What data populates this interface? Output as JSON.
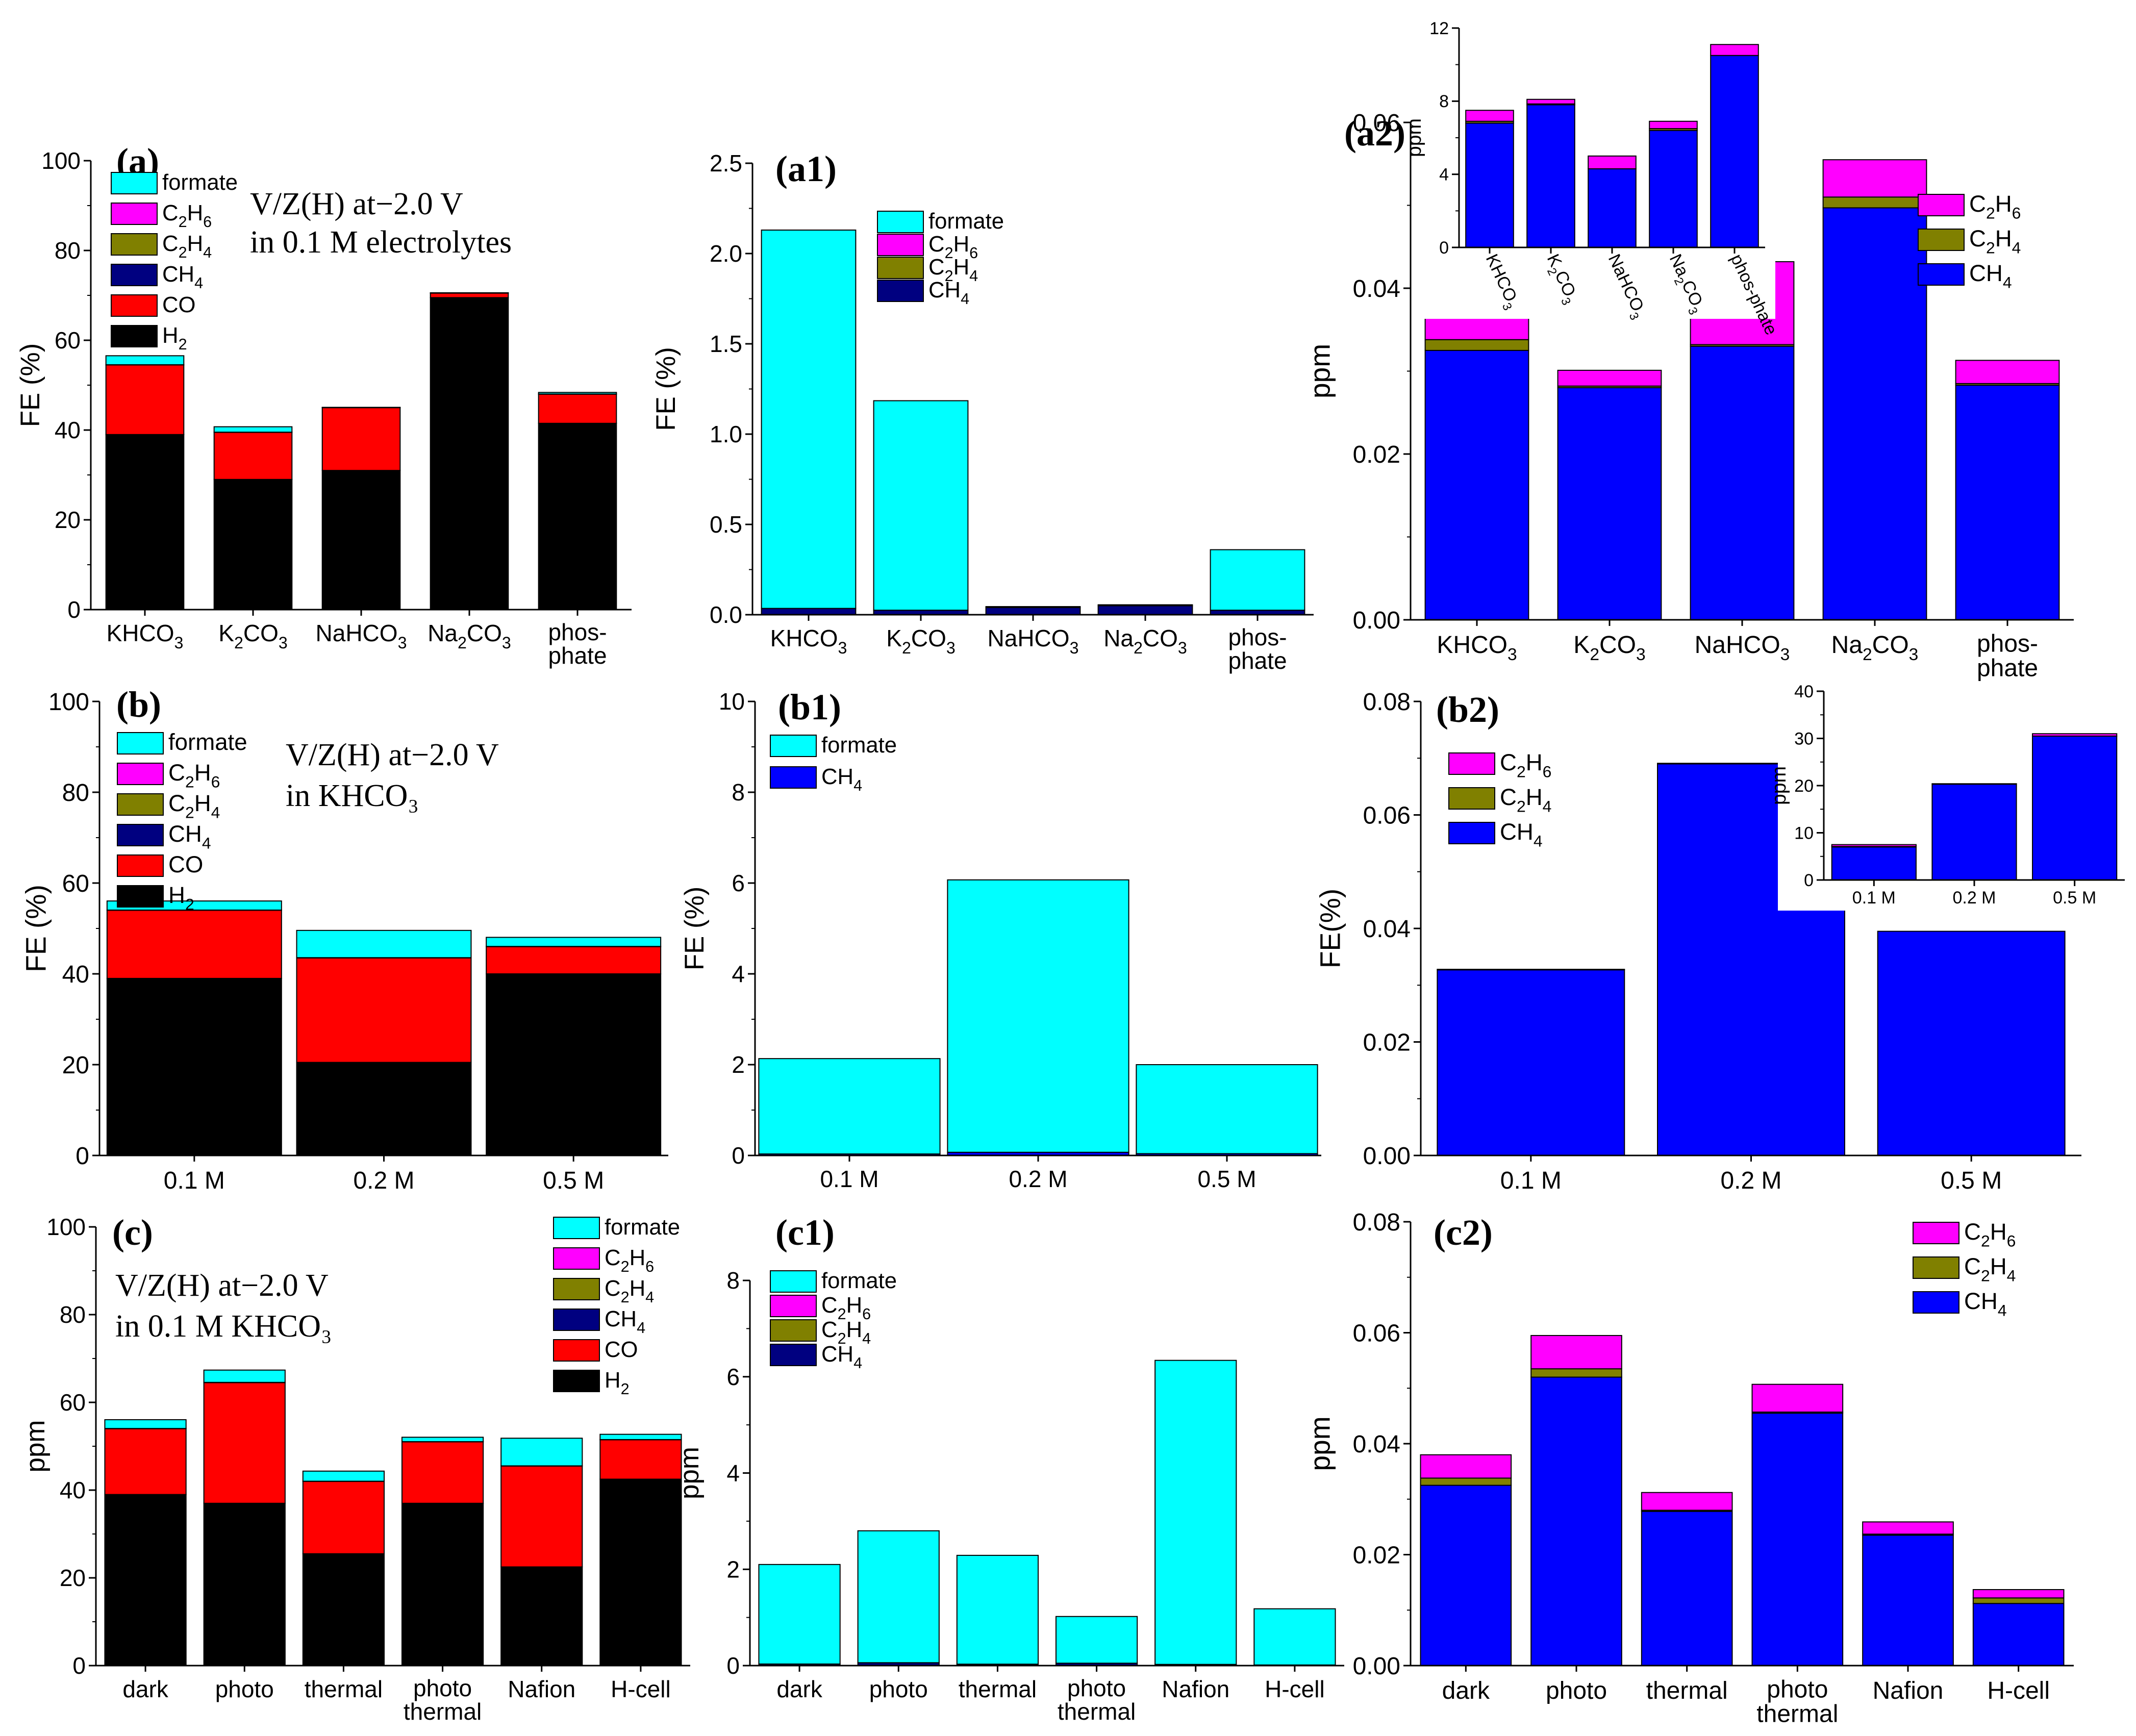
{
  "colors": {
    "formate": "#00FFFF",
    "C2H6": "#FF00FF",
    "C2H4": "#808000",
    "CH4_dark": "#000080",
    "CH4": "#0000FF",
    "CO": "#FF0000",
    "H2": "#000000"
  },
  "chart_data": [
    {
      "id": "a",
      "type": "bar",
      "stacked": true,
      "panel_label": "(a)",
      "annotation": [
        "V/Z(H) at−2.0 V",
        "in 0.1 M electrolytes"
      ],
      "ylabel": "FE (%)",
      "ylim": [
        0,
        100
      ],
      "yticks": [
        "0",
        "20",
        "40",
        "60",
        "80",
        "100"
      ],
      "categories": [
        [
          "KHCO",
          "3",
          ""
        ],
        [
          "K",
          "2",
          "CO",
          "3",
          ""
        ],
        [
          "NaHCO",
          "3",
          ""
        ],
        [
          "Na",
          "2",
          "CO",
          "3",
          ""
        ],
        [
          "phos-",
          "phate"
        ]
      ],
      "series": [
        {
          "name": "H2",
          "label": [
            "H",
            "2",
            ""
          ],
          "color": "#000000",
          "values": [
            39,
            29,
            31,
            69.5,
            41.5
          ]
        },
        {
          "name": "CO",
          "label": [
            "CO"
          ],
          "color": "#FF0000",
          "values": [
            15.5,
            10.5,
            14,
            1,
            6.5
          ]
        },
        {
          "name": "CH4",
          "label": [
            "CH",
            "4",
            ""
          ],
          "color": "#000080",
          "values": [
            0.05,
            0.03,
            0.03,
            0.05,
            0.03
          ]
        },
        {
          "name": "C2H4",
          "label": [
            "C",
            "2",
            "H",
            "4",
            ""
          ],
          "color": "#808000",
          "values": [
            0,
            0,
            0,
            0,
            0
          ]
        },
        {
          "name": "C2H6",
          "label": [
            "C",
            "2",
            "H",
            "6",
            ""
          ],
          "color": "#FF00FF",
          "values": [
            0,
            0,
            0,
            0,
            0
          ]
        },
        {
          "name": "formate",
          "label": [
            "formate"
          ],
          "color": "#00FFFF",
          "values": [
            2,
            1.2,
            0.03,
            0.03,
            0.35
          ]
        }
      ]
    },
    {
      "id": "a1",
      "type": "bar",
      "stacked": true,
      "panel_label": "(a1)",
      "ylabel": "FE (%)",
      "ylim": [
        0,
        2.5
      ],
      "yticks": [
        "0.0",
        "0.5",
        "1.0",
        "1.5",
        "2.0",
        "2.5"
      ],
      "categories": [
        [
          "KHCO",
          "3",
          ""
        ],
        [
          "K",
          "2",
          "CO",
          "3",
          ""
        ],
        [
          "NaHCO",
          "3",
          ""
        ],
        [
          "Na",
          "2",
          "CO",
          "3",
          ""
        ],
        [
          "phos-",
          "phate"
        ]
      ],
      "series": [
        {
          "name": "CH4",
          "label": [
            "CH",
            "4",
            ""
          ],
          "color": "#000080",
          "values": [
            0.035,
            0.025,
            0.04,
            0.05,
            0.025
          ]
        },
        {
          "name": "C2H4",
          "label": [
            "C",
            "2",
            "H",
            "4",
            ""
          ],
          "color": "#808000",
          "values": [
            0,
            0,
            0,
            0,
            0
          ]
        },
        {
          "name": "C2H6",
          "label": [
            "C",
            "2",
            "H",
            "6",
            ""
          ],
          "color": "#FF00FF",
          "values": [
            0,
            0,
            0,
            0,
            0
          ]
        },
        {
          "name": "formate",
          "label": [
            "formate"
          ],
          "color": "#00FFFF",
          "values": [
            2.095,
            1.16,
            0.005,
            0.005,
            0.335
          ]
        }
      ]
    },
    {
      "id": "a2",
      "type": "bar",
      "stacked": true,
      "panel_label": "(a2)",
      "ylabel": "ppm",
      "ylim": [
        0,
        0.06
      ],
      "yticks": [
        "0.00",
        "0.02",
        "0.04",
        "0.06"
      ],
      "categories": [
        [
          "KHCO",
          "3",
          ""
        ],
        [
          "K",
          "2",
          "CO",
          "3",
          ""
        ],
        [
          "NaHCO",
          "3",
          ""
        ],
        [
          "Na",
          "2",
          "CO",
          "3",
          ""
        ],
        [
          "phos-",
          "phate"
        ]
      ],
      "series": [
        {
          "name": "CH4",
          "label": [
            "CH",
            "4",
            ""
          ],
          "color": "#0000FF",
          "values": [
            0.0325,
            0.028,
            0.033,
            0.0497,
            0.0283
          ]
        },
        {
          "name": "C2H4",
          "label": [
            "C",
            "2",
            "H",
            "4",
            ""
          ],
          "color": "#808000",
          "values": [
            0.0013,
            0.0002,
            0.0002,
            0.0013,
            0.0002
          ]
        },
        {
          "name": "C2H6",
          "label": [
            "C",
            "2",
            "H",
            "6",
            ""
          ],
          "color": "#FF00FF",
          "values": [
            0.0042,
            0.0019,
            0.01,
            0.0045,
            0.0028
          ]
        }
      ]
    },
    {
      "id": "a2_inset",
      "type": "bar",
      "stacked": true,
      "ylabel": "ppm",
      "ylim": [
        0,
        12
      ],
      "yticks": [
        "0",
        "4",
        "8",
        "12"
      ],
      "categories": [
        [
          "KHCO",
          "3",
          ""
        ],
        [
          "K",
          "2",
          "CO",
          "3",
          ""
        ],
        [
          "NaHCO",
          "3",
          ""
        ],
        [
          "Na",
          "2",
          "CO",
          "3",
          ""
        ],
        [
          "phos-",
          "phate"
        ]
      ],
      "series": [
        {
          "name": "CH4",
          "label": [
            "CH",
            "4",
            ""
          ],
          "color": "#0000FF",
          "values": [
            6.8,
            7.8,
            4.3,
            6.4,
            10.5
          ]
        },
        {
          "name": "C2H4",
          "label": [
            "C",
            "2",
            "H",
            "4",
            ""
          ],
          "color": "#808000",
          "values": [
            0.1,
            0.05,
            0,
            0.1,
            0
          ]
        },
        {
          "name": "C2H6",
          "label": [
            "C",
            "2",
            "H",
            "6",
            ""
          ],
          "color": "#FF00FF",
          "values": [
            0.6,
            0.25,
            0.7,
            0.4,
            0.6
          ]
        }
      ]
    },
    {
      "id": "b",
      "type": "bar",
      "stacked": true,
      "panel_label": "(b)",
      "annotation": [
        "V/Z(H) at−2.0 V",
        "in KHCO₃"
      ],
      "ylabel": "FE (%)",
      "ylim": [
        0,
        100
      ],
      "yticks": [
        "0",
        "20",
        "40",
        "60",
        "80",
        "100"
      ],
      "categories": [
        [
          "0.1 M"
        ],
        [
          "0.2 M"
        ],
        [
          "0.5 M"
        ]
      ],
      "series": [
        {
          "name": "H2",
          "label": [
            "H",
            "2",
            ""
          ],
          "color": "#000000",
          "values": [
            39,
            20.5,
            40
          ]
        },
        {
          "name": "CO",
          "label": [
            "CO"
          ],
          "color": "#FF0000",
          "values": [
            15,
            23,
            6
          ]
        },
        {
          "name": "CH4",
          "label": [
            "CH",
            "4",
            ""
          ],
          "color": "#000080",
          "values": [
            0.05,
            0.07,
            0.04
          ]
        },
        {
          "name": "C2H4",
          "label": [
            "C",
            "2",
            "H",
            "4",
            ""
          ],
          "color": "#808000",
          "values": [
            0,
            0,
            0
          ]
        },
        {
          "name": "C2H6",
          "label": [
            "C",
            "2",
            "H",
            "6",
            ""
          ],
          "color": "#FF00FF",
          "values": [
            0,
            0,
            0
          ]
        },
        {
          "name": "formate",
          "label": [
            "formate"
          ],
          "color": "#00FFFF",
          "values": [
            2,
            6,
            2
          ]
        }
      ]
    },
    {
      "id": "b1",
      "type": "bar",
      "stacked": true,
      "panel_label": "(b1)",
      "ylabel": "FE (%)",
      "ylim": [
        0,
        10
      ],
      "yticks": [
        "0",
        "2",
        "4",
        "6",
        "8",
        "10"
      ],
      "categories": [
        [
          "0.1 M"
        ],
        [
          "0.2 M"
        ],
        [
          "0.5 M"
        ]
      ],
      "series": [
        {
          "name": "CH4",
          "label": [
            "CH",
            "4",
            ""
          ],
          "color": "#0000FF",
          "values": [
            0.033,
            0.07,
            0.04
          ]
        },
        {
          "name": "formate",
          "label": [
            "formate"
          ],
          "color": "#00FFFF",
          "values": [
            2.1,
            6.0,
            1.96
          ]
        }
      ]
    },
    {
      "id": "b2",
      "type": "bar",
      "stacked": true,
      "panel_label": "(b2)",
      "ylabel": "FE(%)",
      "ylim": [
        0,
        0.08
      ],
      "yticks": [
        "0.00",
        "0.02",
        "0.04",
        "0.06",
        "0.08"
      ],
      "categories": [
        [
          "0.1 M"
        ],
        [
          "0.2 M"
        ],
        [
          "0.5 M"
        ]
      ],
      "series": [
        {
          "name": "CH4",
          "label": [
            "CH",
            "4",
            ""
          ],
          "color": "#0000FF",
          "values": [
            0.0327,
            0.069,
            0.0395
          ]
        },
        {
          "name": "C2H4",
          "label": [
            "C",
            "2",
            "H",
            "4",
            ""
          ],
          "color": "#808000",
          "values": [
            0.0001,
            0.0001,
            0
          ]
        },
        {
          "name": "C2H6",
          "label": [
            "C",
            "2",
            "H",
            "6",
            ""
          ],
          "color": "#FF00FF",
          "values": [
            0,
            0,
            0
          ]
        }
      ]
    },
    {
      "id": "b2_inset",
      "type": "bar",
      "stacked": true,
      "ylabel": "ppm",
      "ylim": [
        0,
        40
      ],
      "yticks": [
        "0",
        "10",
        "20",
        "30",
        "40"
      ],
      "categories": [
        [
          "0.1 M"
        ],
        [
          "0.2 M"
        ],
        [
          "0.5 M"
        ]
      ],
      "series": [
        {
          "name": "CH4",
          "label": [
            "CH",
            "4",
            ""
          ],
          "color": "#0000FF",
          "values": [
            7,
            20.3,
            30.5
          ]
        },
        {
          "name": "C2H4",
          "label": [
            "C",
            "2",
            "H",
            "4",
            ""
          ],
          "color": "#808000",
          "values": [
            0.1,
            0,
            0
          ]
        },
        {
          "name": "C2H6",
          "label": [
            "C",
            "2",
            "H",
            "6",
            ""
          ],
          "color": "#FF00FF",
          "values": [
            0.4,
            0.1,
            0.5
          ]
        }
      ]
    },
    {
      "id": "c",
      "type": "bar",
      "stacked": true,
      "panel_label": "(c)",
      "annotation": [
        "V/Z(H) at−2.0 V",
        "in 0.1 M KHCO₃"
      ],
      "ylabel": "ppm",
      "ylim": [
        0,
        100
      ],
      "yticks": [
        "0",
        "20",
        "40",
        "60",
        "80",
        "100"
      ],
      "categories": [
        [
          "dark"
        ],
        [
          "photo"
        ],
        [
          "thermal"
        ],
        [
          "photo",
          "thermal"
        ],
        [
          "Nafion"
        ],
        [
          "H-cell"
        ]
      ],
      "series": [
        {
          "name": "H2",
          "label": [
            "H",
            "2",
            ""
          ],
          "color": "#000000",
          "values": [
            39,
            37,
            25.5,
            37,
            22.5,
            42.5
          ]
        },
        {
          "name": "CO",
          "label": [
            "CO"
          ],
          "color": "#FF0000",
          "values": [
            15,
            27.5,
            16.5,
            14,
            23,
            9
          ]
        },
        {
          "name": "CH4",
          "label": [
            "CH",
            "4",
            ""
          ],
          "color": "#000080",
          "values": [
            0.05,
            0.06,
            0.03,
            0.05,
            0.03,
            0.02
          ]
        },
        {
          "name": "C2H4",
          "label": [
            "C",
            "2",
            "H",
            "4",
            ""
          ],
          "color": "#808000",
          "values": [
            0,
            0,
            0,
            0,
            0,
            0
          ]
        },
        {
          "name": "C2H6",
          "label": [
            "C",
            "2",
            "H",
            "6",
            ""
          ],
          "color": "#FF00FF",
          "values": [
            0,
            0,
            0,
            0,
            0,
            0
          ]
        },
        {
          "name": "formate",
          "label": [
            "formate"
          ],
          "color": "#00FFFF",
          "values": [
            2,
            2.8,
            2.3,
            1,
            6.3,
            1.2
          ]
        }
      ]
    },
    {
      "id": "c1",
      "type": "bar",
      "stacked": true,
      "panel_label": "(c1)",
      "ylabel": "ppm",
      "ylim": [
        0,
        8
      ],
      "yticks": [
        "0",
        "2",
        "4",
        "6",
        "8"
      ],
      "categories": [
        [
          "dark"
        ],
        [
          "photo"
        ],
        [
          "thermal"
        ],
        [
          "photo",
          "thermal"
        ],
        [
          "Nafion"
        ],
        [
          "H-cell"
        ]
      ],
      "series": [
        {
          "name": "CH4",
          "label": [
            "CH",
            "4",
            ""
          ],
          "color": "#000080",
          "values": [
            0.033,
            0.06,
            0.03,
            0.05,
            0.025,
            0.013
          ]
        },
        {
          "name": "C2H4",
          "label": [
            "C",
            "2",
            "H",
            "4",
            ""
          ],
          "color": "#808000",
          "values": [
            0,
            0,
            0,
            0,
            0,
            0
          ]
        },
        {
          "name": "C2H6",
          "label": [
            "C",
            "2",
            "H",
            "6",
            ""
          ],
          "color": "#FF00FF",
          "values": [
            0,
            0,
            0,
            0,
            0,
            0
          ]
        },
        {
          "name": "formate",
          "label": [
            "formate"
          ],
          "color": "#00FFFF",
          "values": [
            2.067,
            2.74,
            2.26,
            0.97,
            6.315,
            1.167
          ]
        }
      ]
    },
    {
      "id": "c2",
      "type": "bar",
      "stacked": true,
      "panel_label": "(c2)",
      "ylabel": "ppm",
      "ylim": [
        0,
        0.08
      ],
      "yticks": [
        "0.00",
        "0.02",
        "0.04",
        "0.06",
        "0.08"
      ],
      "categories": [
        [
          "dark"
        ],
        [
          "photo"
        ],
        [
          "thermal"
        ],
        [
          "photo",
          "thermal"
        ],
        [
          "Nafion"
        ],
        [
          "H-cell"
        ]
      ],
      "series": [
        {
          "name": "CH4",
          "label": [
            "CH",
            "4",
            ""
          ],
          "color": "#0000FF",
          "values": [
            0.0325,
            0.052,
            0.0278,
            0.0455,
            0.0235,
            0.0112
          ]
        },
        {
          "name": "C2H4",
          "label": [
            "C",
            "2",
            "H",
            "4",
            ""
          ],
          "color": "#808000",
          "values": [
            0.0013,
            0.0015,
            0.0002,
            0.0002,
            0.0002,
            0.001
          ]
        },
        {
          "name": "C2H6",
          "label": [
            "C",
            "2",
            "H",
            "6",
            ""
          ],
          "color": "#FF00FF",
          "values": [
            0.0042,
            0.006,
            0.0032,
            0.005,
            0.0022,
            0.0015
          ]
        }
      ]
    }
  ]
}
